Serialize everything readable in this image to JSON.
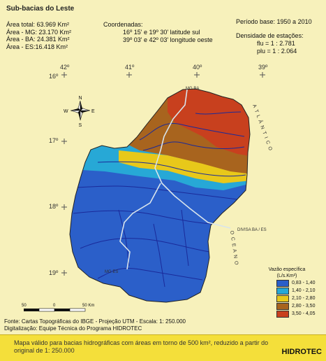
{
  "title": "Sub-bacias do Leste",
  "areas": {
    "total": "Área total: 63.969 Km²",
    "mg": "Área - MG: 23.170 Km²",
    "ba": "Área - BA: 24.381 Km²",
    "es": "Área - ES:16.418 Km²"
  },
  "coordinates": {
    "label": "Coordenadas:",
    "line1": "16º 15' e 19º 30'  latitude sul",
    "line2": "39º 03' e 42º 03'  longitude oeste"
  },
  "period": "Período base:  1950  a  2010",
  "density": {
    "label": "Densidade de estações:",
    "flu": "flu  = 1 : 2.781",
    "plu": "plu = 1 : 2.064"
  },
  "grid": {
    "longitudes": [
      "42º",
      "41º",
      "40º",
      "39º"
    ],
    "latitudes": [
      "16º",
      "17º",
      "18º",
      "19º"
    ]
  },
  "compass": {
    "n": "N",
    "s": "S",
    "e": "E",
    "w": "W"
  },
  "map_labels": {
    "mg_ba": "MG  BA",
    "mg_es": "MG  ES",
    "divisa": "DIVISA BA / ES",
    "ocean": "O C E A N O",
    "atlantic": "A T L Â N T I C O"
  },
  "legend": {
    "title_line1": "Vazão específica",
    "title_line2": "(L/s.Km²)",
    "classes": [
      {
        "label": "0,83 - 1,40",
        "color": "#2b5fc9"
      },
      {
        "label": "1,40 - 2,10",
        "color": "#27a8d6"
      },
      {
        "label": "2,10 - 2,80",
        "color": "#e8c81a"
      },
      {
        "label": "2,80 - 3,50",
        "color": "#a8641e"
      },
      {
        "label": "3,50 - 4,05",
        "color": "#c8401e"
      }
    ]
  },
  "scale": {
    "l0": "50",
    "l1": "0",
    "l2": "50 Km"
  },
  "source": {
    "line1": "Fonte: Cartas Topográficas do IBGE - Projeção UTM - Escala: 1: 250.000",
    "line2": "Digitalização: Equipe Técnica do Programa HIDROTEC"
  },
  "footer": {
    "line1": "Mapa válido para bacias hidrográficas com áreas em torno de 500 km², reduzido a partir do",
    "line2": "original de 1: 250.000",
    "brand": "HIDROTEC"
  }
}
